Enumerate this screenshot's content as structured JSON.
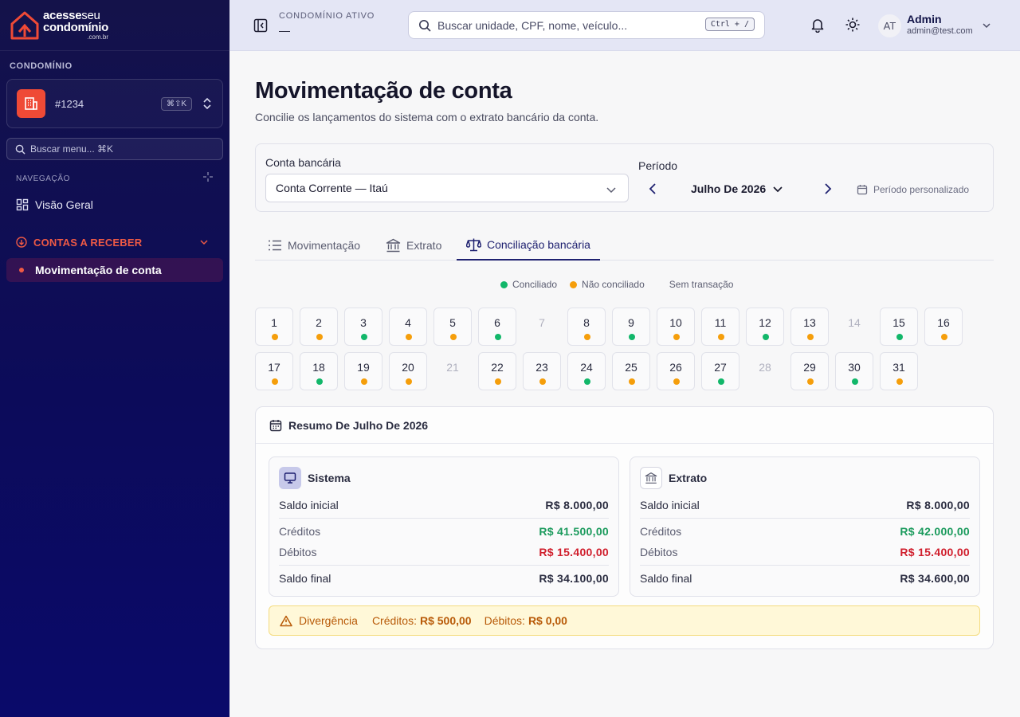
{
  "colors": {
    "accent": "#1f2170",
    "brand_red": "#ef4a36",
    "conciliado": "#12b76a",
    "nao_conciliado": "#f59e0b",
    "credit": "#1a9a5c",
    "debit": "#d01e2c"
  },
  "logo": {
    "line1_bold": "acesse",
    "line1_light": "seu",
    "line2": "condomínio",
    "line3": ".com.br"
  },
  "sidebar": {
    "section_title": "CONDOMÍNIO",
    "condo_name": "#1234",
    "condo_shortcut": "⌘⇧K",
    "search_placeholder": "Buscar menu... ⌘K",
    "nav_label": "NAVEGAÇÃO",
    "items": [
      {
        "label": "Visão Geral",
        "icon": "grid-icon"
      },
      {
        "label": "CONTAS A RECEBER",
        "icon": "arrow-down-circle-icon"
      },
      {
        "label": "Movimentação de conta",
        "icon": "dot-icon"
      }
    ]
  },
  "header": {
    "condo_label": "CONDOMÍNIO ATIVO",
    "condo_value": "—",
    "search_placeholder": "Buscar unidade, CPF, nome, veículo...",
    "search_shortcut": "Ctrl + /",
    "avatar_initials": "AT",
    "user_name": "Admin",
    "user_email": "admin@test.com"
  },
  "page": {
    "title": "Movimentação de conta",
    "subtitle": "Concilie os lançamentos do sistema com o extrato bancário da conta."
  },
  "filters": {
    "account_label": "Conta bancária",
    "account_value": "Conta Corrente — Itaú",
    "period_label": "Período",
    "period_value": "Julho De 2026",
    "custom_period": "Período personalizado"
  },
  "tabs": [
    {
      "label": "Movimentação",
      "active": false
    },
    {
      "label": "Extrato",
      "active": false
    },
    {
      "label": "Conciliação bancária",
      "active": true
    }
  ],
  "legend": [
    {
      "label": "Conciliado",
      "status": "c"
    },
    {
      "label": "Não conciliado",
      "status": "n"
    },
    {
      "label": "Sem transação",
      "status": "e"
    }
  ],
  "calendar": {
    "days": [
      {
        "day": "1",
        "status": "n"
      },
      {
        "day": "2",
        "status": "n"
      },
      {
        "day": "3",
        "status": "c"
      },
      {
        "day": "4",
        "status": "n"
      },
      {
        "day": "5",
        "status": "n"
      },
      {
        "day": "6",
        "status": "c"
      },
      {
        "day": "7",
        "status": "e"
      },
      {
        "day": "8",
        "status": "n"
      },
      {
        "day": "9",
        "status": "c"
      },
      {
        "day": "10",
        "status": "n"
      },
      {
        "day": "11",
        "status": "n"
      },
      {
        "day": "12",
        "status": "c"
      },
      {
        "day": "13",
        "status": "n"
      },
      {
        "day": "14",
        "status": "e"
      },
      {
        "day": "15",
        "status": "c"
      },
      {
        "day": "16",
        "status": "n"
      },
      {
        "day": "17",
        "status": "n"
      },
      {
        "day": "18",
        "status": "c"
      },
      {
        "day": "19",
        "status": "n"
      },
      {
        "day": "20",
        "status": "n"
      },
      {
        "day": "21",
        "status": "e"
      },
      {
        "day": "22",
        "status": "n"
      },
      {
        "day": "23",
        "status": "n"
      },
      {
        "day": "24",
        "status": "c"
      },
      {
        "day": "25",
        "status": "n"
      },
      {
        "day": "26",
        "status": "n"
      },
      {
        "day": "27",
        "status": "c"
      },
      {
        "day": "28",
        "status": "e"
      },
      {
        "day": "29",
        "status": "n"
      },
      {
        "day": "30",
        "status": "c"
      },
      {
        "day": "31",
        "status": "n"
      }
    ]
  },
  "summary": {
    "title": "Resumo De Julho De 2026",
    "sistema": {
      "title": "Sistema",
      "saldo_inicial_label": "Saldo inicial",
      "saldo_inicial": "R$ 8.000,00",
      "creditos_label": "Créditos",
      "creditos": "R$ 41.500,00",
      "debitos_label": "Débitos",
      "debitos": "R$ 15.400,00",
      "saldo_final_label": "Saldo final",
      "saldo_final": "R$ 34.100,00"
    },
    "extrato": {
      "title": "Extrato",
      "saldo_inicial_label": "Saldo inicial",
      "saldo_inicial": "R$ 8.000,00",
      "creditos_label": "Créditos",
      "creditos": "R$ 42.000,00",
      "debitos_label": "Débitos",
      "debitos": "R$ 15.400,00",
      "saldo_final_label": "Saldo final",
      "saldo_final": "R$ 34.600,00"
    },
    "divergence": {
      "label": "Divergência",
      "creditos_label": "Créditos:",
      "creditos": "R$ 500,00",
      "debitos_label": "Débitos:",
      "debitos": "R$ 0,00"
    }
  }
}
